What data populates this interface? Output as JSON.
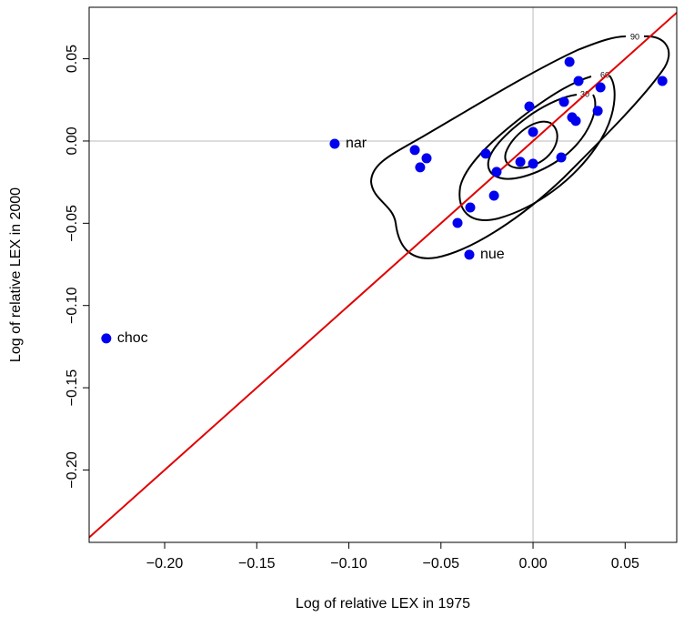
{
  "chart_data": {
    "type": "scatter",
    "x_label": "Log of relative LEX in 1975",
    "y_label": "Log of relative LEX in 2000",
    "xlim": [
      -0.241,
      0.078
    ],
    "ylim": [
      -0.244,
      0.0813
    ],
    "xticks": [
      {
        "value": -0.2,
        "label": "−0.20"
      },
      {
        "value": -0.15,
        "label": "−0.15"
      },
      {
        "value": -0.1,
        "label": "−0.10"
      },
      {
        "value": -0.05,
        "label": "−0.05"
      },
      {
        "value": 0,
        "label": "0.00"
      },
      0.05
    ],
    "yticks": [
      {
        "value": -0.2,
        "label": "−0.20"
      },
      {
        "value": -0.15,
        "label": "−0.15"
      },
      {
        "value": -0.1,
        "label": "−0.10"
      },
      {
        "value": -0.05,
        "label": "−0.05"
      },
      {
        "value": 0,
        "label": "0.00"
      },
      0.05
    ],
    "identity_line": true,
    "identity_color": "#e00000",
    "zero_lines": true,
    "contour_labels": [
      "90",
      "60",
      "30"
    ],
    "series": [
      {
        "color": "#0000ee",
        "x": [
          -0.2317,
          -0.1077,
          -0.0346,
          -0.0642,
          -0.0613,
          -0.0578,
          -0.041,
          -0.0341,
          -0.0257,
          -0.0198,
          -0.0212,
          -0.0069,
          0.0,
          -0.002,
          0.0,
          0.0153,
          0.0168,
          0.0198,
          0.0247,
          0.0212,
          0.0232,
          0.0351,
          0.0366,
          0.0702
        ],
        "values": [
          -0.12,
          -0.0017,
          -0.0691,
          -0.0055,
          -0.016,
          -0.0105,
          -0.0498,
          -0.0404,
          -0.0077,
          -0.0188,
          -0.0332,
          -0.0127,
          -0.0138,
          0.021,
          0.0055,
          -0.01,
          0.0238,
          0.0481,
          0.0365,
          0.0144,
          0.0122,
          0.0183,
          0.0326,
          0.0365
        ],
        "labels": [
          "choc",
          "nar",
          "nue",
          null,
          null,
          null,
          null,
          null,
          null,
          null,
          null,
          null,
          null,
          null,
          null,
          null,
          null,
          null,
          null,
          null,
          null,
          null,
          null,
          null
        ]
      }
    ]
  }
}
